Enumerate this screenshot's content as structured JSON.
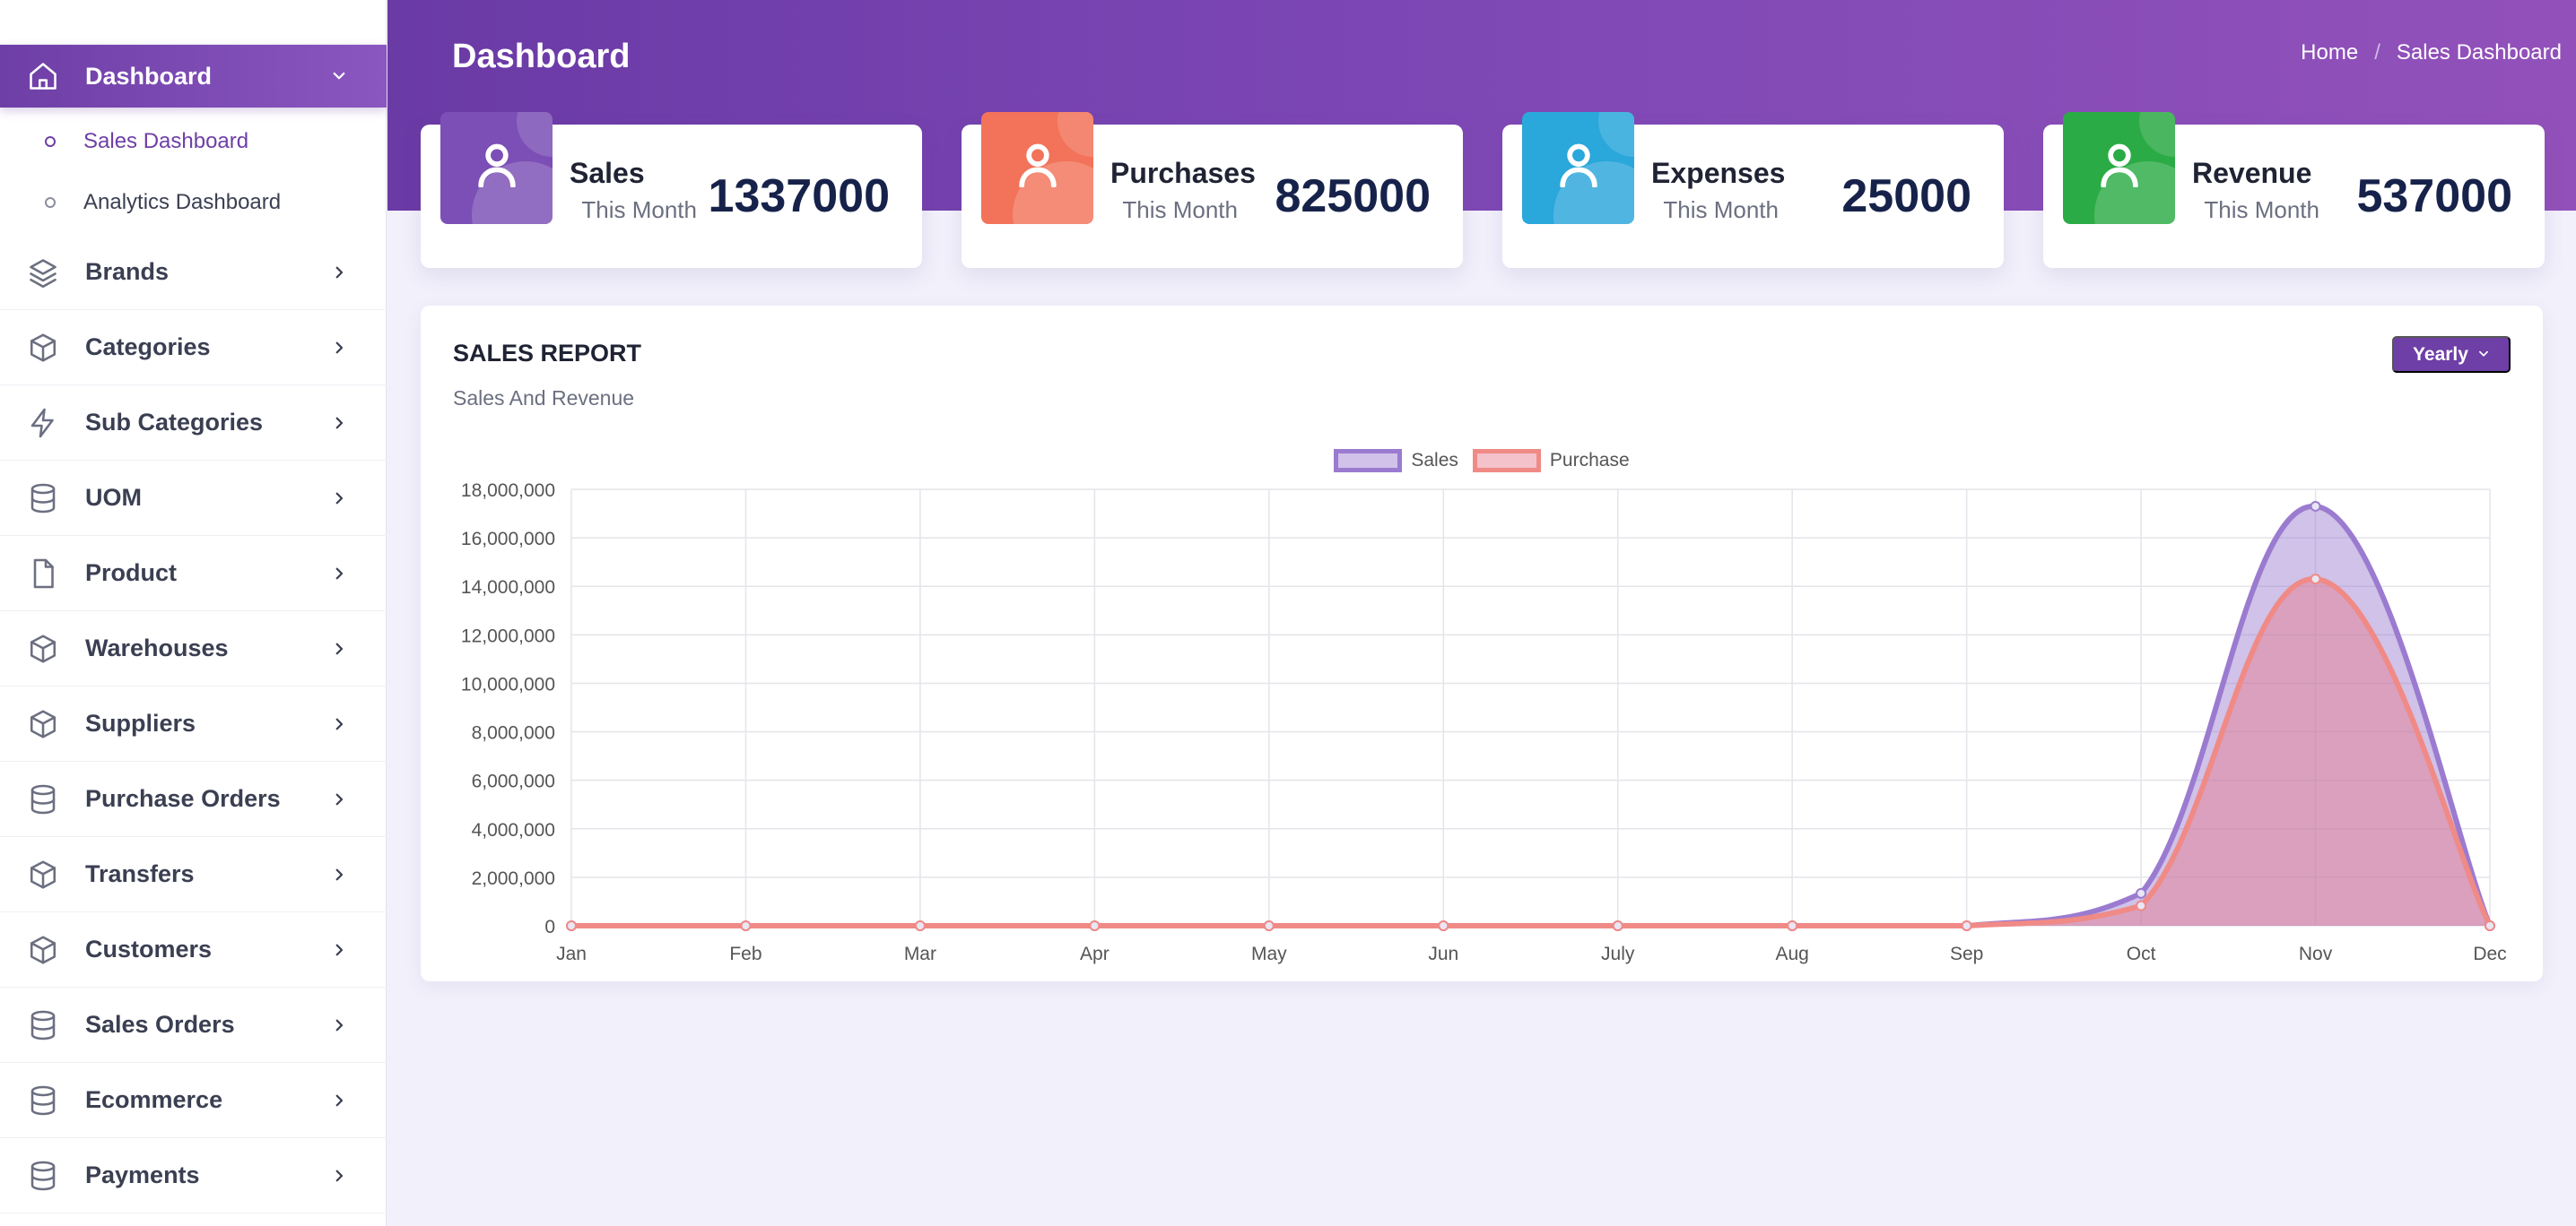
{
  "sidebar": {
    "active": {
      "label": "Dashboard",
      "icon": "home-icon"
    },
    "sub_items": [
      {
        "label": "Sales Dashboard",
        "current": true
      },
      {
        "label": "Analytics Dashboard",
        "current": false
      }
    ],
    "items": [
      {
        "label": "Brands",
        "icon": "layers-icon"
      },
      {
        "label": "Categories",
        "icon": "box-icon"
      },
      {
        "label": "Sub Categories",
        "icon": "lightning-icon"
      },
      {
        "label": "UOM",
        "icon": "database-icon"
      },
      {
        "label": "Product",
        "icon": "file-icon"
      },
      {
        "label": "Warehouses",
        "icon": "box-icon"
      },
      {
        "label": "Suppliers",
        "icon": "box-icon"
      },
      {
        "label": "Purchase Orders",
        "icon": "database-icon"
      },
      {
        "label": "Transfers",
        "icon": "box-icon"
      },
      {
        "label": "Customers",
        "icon": "box-icon"
      },
      {
        "label": "Sales Orders",
        "icon": "database-icon"
      },
      {
        "label": "Ecommerce",
        "icon": "database-icon"
      },
      {
        "label": "Payments",
        "icon": "database-icon"
      }
    ]
  },
  "header": {
    "title": "Dashboard",
    "breadcrumb": {
      "home": "Home",
      "separator": "/",
      "current": "Sales Dashboard"
    }
  },
  "stats": [
    {
      "title": "Sales",
      "subtitle": "This Month",
      "value": "1337000",
      "color": "#7b4fb5",
      "icon": "user-icon"
    },
    {
      "title": "Purchases",
      "subtitle": "This Month",
      "value": "825000",
      "color": "#f2735a",
      "icon": "user-icon"
    },
    {
      "title": "Expenses",
      "subtitle": "This Month",
      "value": "25000",
      "color": "#2aa7db",
      "icon": "user-icon"
    },
    {
      "title": "Revenue",
      "subtitle": "This Month",
      "value": "537000",
      "color": "#2bab45",
      "icon": "user-icon"
    }
  ],
  "report": {
    "title": "SALES REPORT",
    "subtitle": "Sales And Revenue",
    "period_button": "Yearly"
  },
  "chart_data": {
    "type": "area",
    "categories": [
      "Jan",
      "Feb",
      "Mar",
      "Apr",
      "May",
      "Jun",
      "July",
      "Aug",
      "Sep",
      "Oct",
      "Nov",
      "Dec"
    ],
    "series": [
      {
        "name": "Sales",
        "values": [
          0,
          0,
          0,
          0,
          0,
          0,
          0,
          0,
          0,
          1337000,
          17300000,
          0
        ],
        "color": "#9b7bd0",
        "fill": "rgba(150,120,205,0.45)"
      },
      {
        "name": "Purchase",
        "values": [
          0,
          0,
          0,
          0,
          0,
          0,
          0,
          0,
          0,
          825000,
          14300000,
          0
        ],
        "color": "#f08a86",
        "fill": "rgba(230,120,140,0.45)"
      }
    ],
    "y_ticks": [
      "0",
      "2,000,000",
      "4,000,000",
      "6,000,000",
      "8,000,000",
      "10,000,000",
      "12,000,000",
      "14,000,000",
      "16,000,000",
      "18,000,000"
    ],
    "ylim": [
      0,
      18000000
    ],
    "grid": true,
    "legend": "top-center"
  }
}
